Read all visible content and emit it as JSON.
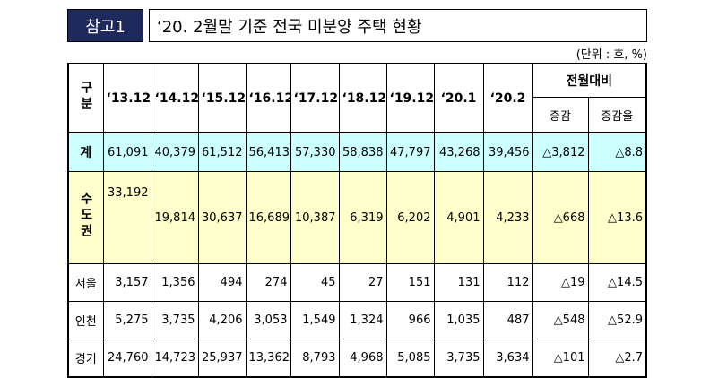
{
  "header": {
    "badge": "참고1",
    "title": "‘20. 2월말 기준 전국 미분양 주택 현황"
  },
  "unit": "(단위 : 호, %)",
  "table": {
    "corner": "구분",
    "columns": [
      "‘13.12",
      "‘14.12",
      "‘15.12",
      "‘16.12",
      "‘17.12",
      "‘18.12",
      "‘19.12",
      "‘20.1",
      "‘20.2"
    ],
    "group": "전월대비",
    "subcolumns": [
      "증감",
      "증감율"
    ],
    "rows": [
      {
        "label": "계",
        "cells": [
          "61,091",
          "40,379",
          "61,512",
          "56,413",
          "57,330",
          "58,838",
          "47,797",
          "43,268",
          "39,456",
          "△3,812",
          "△8.8"
        ]
      },
      {
        "label": "수도권",
        "cells": [
          "33,192",
          "19,814",
          "30,637",
          "16,689",
          "10,387",
          "6,319",
          "6,202",
          "4,901",
          "4,233",
          "△668",
          "△13.6"
        ]
      },
      {
        "label": "서울",
        "cells": [
          "3,157",
          "1,356",
          "494",
          "274",
          "45",
          "27",
          "151",
          "131",
          "112",
          "△19",
          "△14.5"
        ]
      },
      {
        "label": "인천",
        "cells": [
          "5,275",
          "3,735",
          "4,206",
          "3,053",
          "1,549",
          "1,324",
          "966",
          "1,035",
          "487",
          "△548",
          "△52.9"
        ]
      },
      {
        "label": "경기",
        "cells": [
          "24,760",
          "14,723",
          "25,937",
          "13,362",
          "8,793",
          "4,968",
          "5,085",
          "3,735",
          "3,634",
          "△101",
          "△2.7"
        ]
      }
    ]
  }
}
